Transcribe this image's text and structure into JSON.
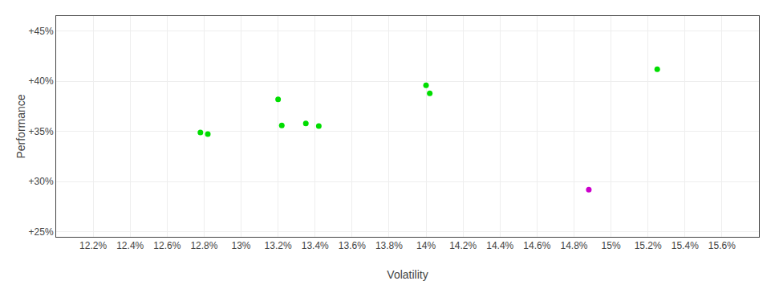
{
  "chart_data": {
    "type": "scatter",
    "xlabel": "Volatility",
    "ylabel": "Performance",
    "xlim": [
      12.0,
      15.8
    ],
    "ylim": [
      24.5,
      46.5
    ],
    "xticks": [
      {
        "value": 12.2,
        "label": "12.2%"
      },
      {
        "value": 12.4,
        "label": "12.4%"
      },
      {
        "value": 12.6,
        "label": "12.6%"
      },
      {
        "value": 12.8,
        "label": "12.8%"
      },
      {
        "value": 13.0,
        "label": "13%"
      },
      {
        "value": 13.2,
        "label": "13.2%"
      },
      {
        "value": 13.4,
        "label": "13.4%"
      },
      {
        "value": 13.6,
        "label": "13.6%"
      },
      {
        "value": 13.8,
        "label": "13.8%"
      },
      {
        "value": 14.0,
        "label": "14%"
      },
      {
        "value": 14.2,
        "label": "14.2%"
      },
      {
        "value": 14.4,
        "label": "14.4%"
      },
      {
        "value": 14.6,
        "label": "14.6%"
      },
      {
        "value": 14.8,
        "label": "14.8%"
      },
      {
        "value": 15.0,
        "label": "15%"
      },
      {
        "value": 15.2,
        "label": "15.2%"
      },
      {
        "value": 15.4,
        "label": "15.4%"
      },
      {
        "value": 15.6,
        "label": "15.6%"
      }
    ],
    "yticks": [
      {
        "value": 25,
        "label": "+25%"
      },
      {
        "value": 30,
        "label": "+30%"
      },
      {
        "value": 35,
        "label": "+35%"
      },
      {
        "value": 40,
        "label": "+40%"
      },
      {
        "value": 45,
        "label": "+45%"
      }
    ],
    "grid": true,
    "series": [
      {
        "color": "#00dd00",
        "x": [
          12.78,
          12.82,
          13.2,
          13.22,
          13.35,
          13.42,
          14.0,
          14.02,
          15.25
        ],
        "values": [
          34.9,
          34.75,
          38.2,
          35.6,
          35.8,
          35.55,
          39.6,
          38.8,
          41.2
        ]
      },
      {
        "color": "#cc00cc",
        "x": [
          14.88
        ],
        "values": [
          29.2
        ]
      }
    ]
  }
}
